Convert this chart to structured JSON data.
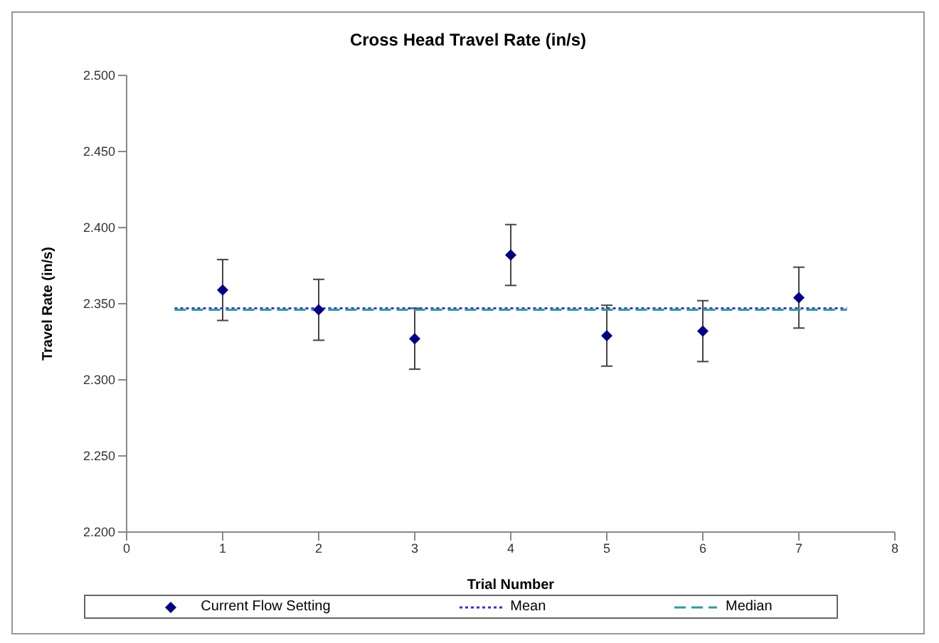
{
  "chart_data": {
    "type": "scatter",
    "title": "Cross Head Travel Rate (in/s)",
    "xlabel": "Trial Number",
    "ylabel": "Travel Rate (in/s)",
    "xlim": [
      0,
      8
    ],
    "xticks": [
      0,
      1,
      2,
      3,
      4,
      5,
      6,
      7,
      8
    ],
    "ylim": [
      2.2,
      2.5
    ],
    "yticks": [
      {
        "value": 2.2,
        "label": "2.200"
      },
      {
        "value": 2.25,
        "label": "2.250"
      },
      {
        "value": 2.3,
        "label": "2.300"
      },
      {
        "value": 2.35,
        "label": "2.350"
      },
      {
        "value": 2.4,
        "label": "2.400"
      },
      {
        "value": 2.45,
        "label": "2.450"
      },
      {
        "value": 2.5,
        "label": "2.500"
      }
    ],
    "grid": false,
    "legend": "bottom",
    "series": [
      {
        "name": "Current Flow Setting",
        "marker": "diamond",
        "color": "#000080",
        "x": [
          1,
          2,
          3,
          4,
          5,
          6,
          7
        ],
        "values": [
          2.359,
          2.346,
          2.327,
          2.382,
          2.329,
          2.332,
          2.354
        ],
        "errors": [
          0.02,
          0.02,
          0.02,
          0.02,
          0.02,
          0.02,
          0.02
        ]
      },
      {
        "name": "Mean",
        "type": "line",
        "line_style": "dotted",
        "color": "#3333cc",
        "x": [
          0.5,
          7.5
        ],
        "values": [
          2.347,
          2.347
        ]
      },
      {
        "name": "Median",
        "type": "line",
        "line_style": "dashed",
        "color": "#339999",
        "x": [
          0.5,
          7.5
        ],
        "values": [
          2.346,
          2.346
        ]
      }
    ]
  }
}
